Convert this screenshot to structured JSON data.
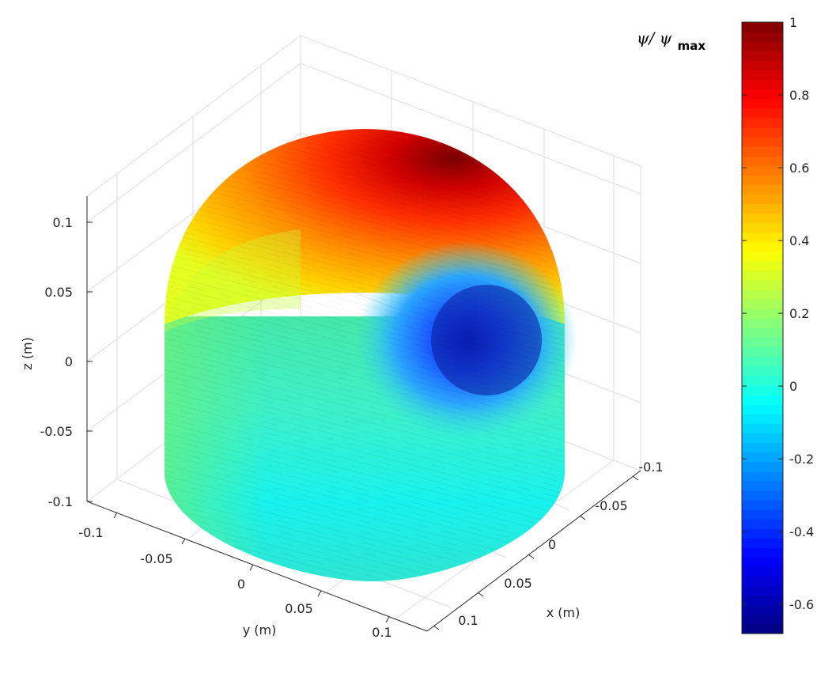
{
  "chart_data": {
    "type": "surface3d",
    "title": "",
    "xlabel": "x (m)",
    "ylabel": "y (m)",
    "zlabel": "z (m)",
    "x_ticks": [
      "-0.1",
      "-0.05",
      "0",
      "0.05",
      "0.1"
    ],
    "y_ticks": [
      "-0.1",
      "-0.05",
      "0",
      "0.05",
      "0.1"
    ],
    "z_ticks": [
      "0.1",
      "0.05",
      "0",
      "-0.05",
      "-0.1"
    ],
    "xlim": [
      -0.12,
      0.12
    ],
    "ylim": [
      -0.12,
      0.12
    ],
    "zlim": [
      -0.1,
      0.12
    ],
    "grid": true,
    "colormap": "jet",
    "surface": {
      "shape": "capsule (cylinder with hemispherical top)",
      "radius": 0.11,
      "cylinder_z_range": [
        -0.1,
        0.0
      ],
      "dome_top_z": 0.11
    },
    "colorbar": {
      "label_symbol": "ψ/ ψ",
      "label_subscript": "max",
      "range": [
        -0.68,
        1.0
      ],
      "ticks": [
        "1",
        "0.8",
        "0.6",
        "0.4",
        "0.2",
        "0",
        "-0.2",
        "-0.4",
        "-0.6"
      ],
      "tick_values": [
        1,
        0.8,
        0.6,
        0.4,
        0.2,
        0,
        -0.2,
        -0.4,
        -0.6
      ],
      "levels": 64,
      "placement": "right"
    }
  }
}
